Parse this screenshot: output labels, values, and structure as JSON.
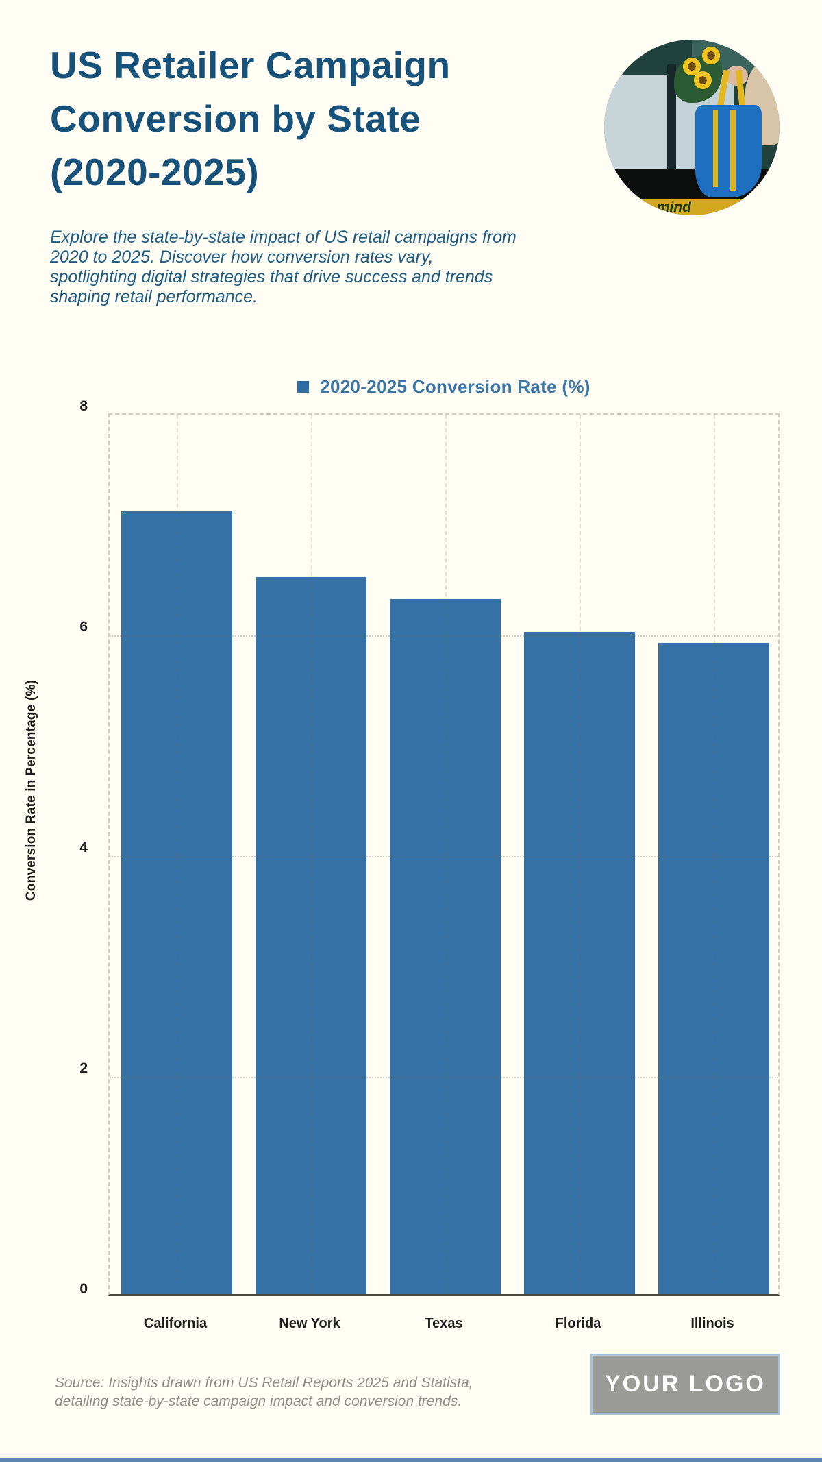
{
  "page": {
    "background_color": "#fffdf4",
    "accent_color": "#17527b"
  },
  "header": {
    "title_lines": [
      "US Retailer Campaign",
      "Conversion by State",
      "(2020-2025)"
    ],
    "title_color": "#17527b",
    "subtitle_lines": [
      "Explore the state-by-state impact of US retail campaigns from",
      "2020 to 2025. Discover how conversion rates vary,",
      "spotlighting digital strategies that drive success and trends",
      "shaping retail performance."
    ],
    "subtitle_color": "#1d5d82",
    "photo": {
      "description": "circular photo of a shopper holding a blue bag with sunflowers in front of a store door",
      "sign_text": "mind"
    }
  },
  "chart": {
    "legend_marker_color": "#2e6da3",
    "legend_text_color": "#3b76a9",
    "gridline_style": "dotted-horizontal, dashed-vertical",
    "axis_line_color": "#46453f",
    "tick_label_color": "#1d1d1b"
  },
  "chart_data": {
    "type": "bar",
    "categories": [
      "California",
      "New York",
      "Texas",
      "Florida",
      "Illinois"
    ],
    "values": [
      7.1,
      6.5,
      6.3,
      6.0,
      5.9
    ],
    "legend": [
      "2020-2025 Conversion Rate (%)"
    ],
    "legend_position": "top",
    "title": "US Retailer Campaign Conversion by State (2020-2025)",
    "xlabel": "",
    "ylabel": "Conversion Rate in Percentage (%)",
    "ylim": [
      0,
      8
    ],
    "yticks": [
      0,
      2,
      4,
      6,
      8
    ],
    "grid": true,
    "bar_color": "#3571a5"
  },
  "footer": {
    "source_lines": [
      "Source: Insights drawn from US Retail Reports 2025 and Statista,",
      "detailing state-by-state campaign impact and conversion trends."
    ],
    "logo_text": "YOUR LOGO",
    "logo_bg": "#9a9a97",
    "logo_border": "#a5c0d8"
  }
}
